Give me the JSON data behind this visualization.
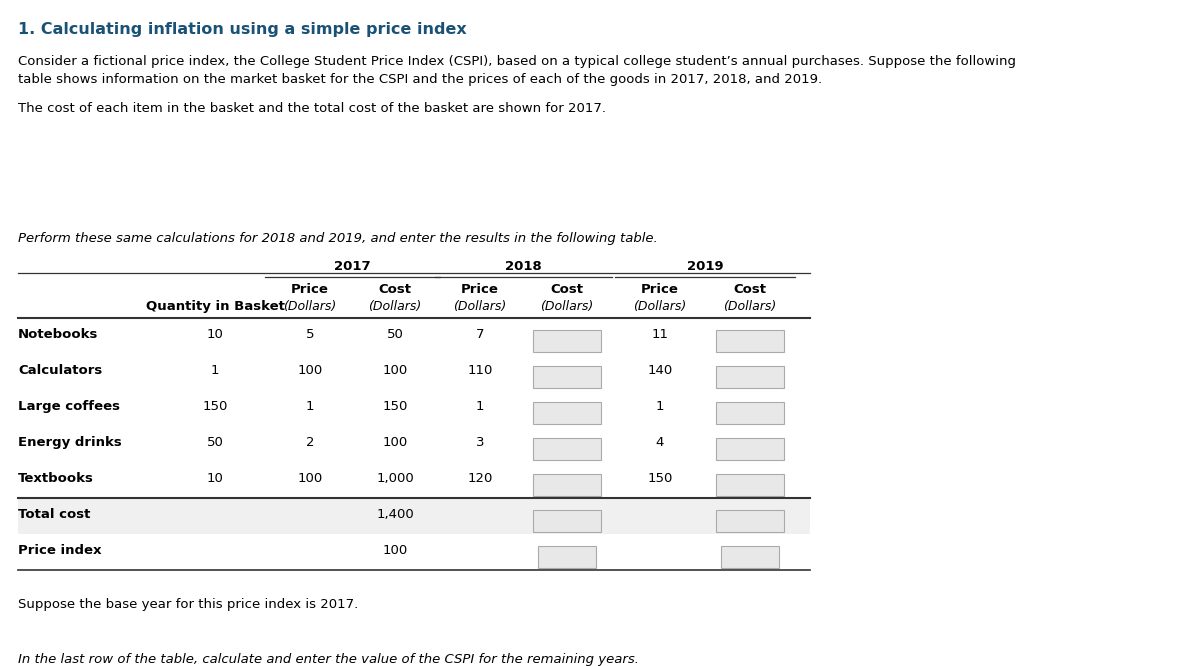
{
  "title": "1. Calculating inflation using a simple price index",
  "para1_line1": "Consider a fictional price index, the College Student Price Index (CSPI), based on a typical college student’s annual purchases. Suppose the following",
  "para1_line2": "table shows information on the market basket for the CSPI and the prices of each of the goods in 2017, 2018, and 2019.",
  "para2": "The cost of each item in the basket and the total cost of the basket are shown for 2017.",
  "para3_italic": "Perform these same calculations for 2018 and 2019, and enter the results in the following table.",
  "para4": "Suppose the base year for this price index is 2017.",
  "para5_italic": "In the last row of the table, calculate and enter the value of the CSPI for the remaining years.",
  "rows": [
    {
      "label": "Notebooks",
      "qty": "10",
      "p17": "5",
      "c17": "50",
      "p18": "7",
      "p19": "11"
    },
    {
      "label": "Calculators",
      "qty": "1",
      "p17": "100",
      "c17": "100",
      "p18": "110",
      "p19": "140"
    },
    {
      "label": "Large coffees",
      "qty": "150",
      "p17": "1",
      "c17": "150",
      "p18": "1",
      "p19": "1"
    },
    {
      "label": "Energy drinks",
      "qty": "50",
      "p17": "2",
      "c17": "100",
      "p18": "3",
      "p19": "4"
    },
    {
      "label": "Textbooks",
      "qty": "10",
      "p17": "100",
      "c17": "1,000",
      "p18": "120",
      "p19": "150"
    }
  ],
  "total_cost_17": "1,400",
  "price_index_17": "100",
  "title_color": "#1a5276",
  "bg_color": "#ffffff",
  "text_color": "#000000",
  "input_box_color": "#e8e8e8",
  "input_box_edge": "#aaaaaa",
  "shaded_row_color": "#f0f0f0",
  "font_size_title": 11.5,
  "font_size_body": 9.5,
  "font_size_table": 9.5
}
